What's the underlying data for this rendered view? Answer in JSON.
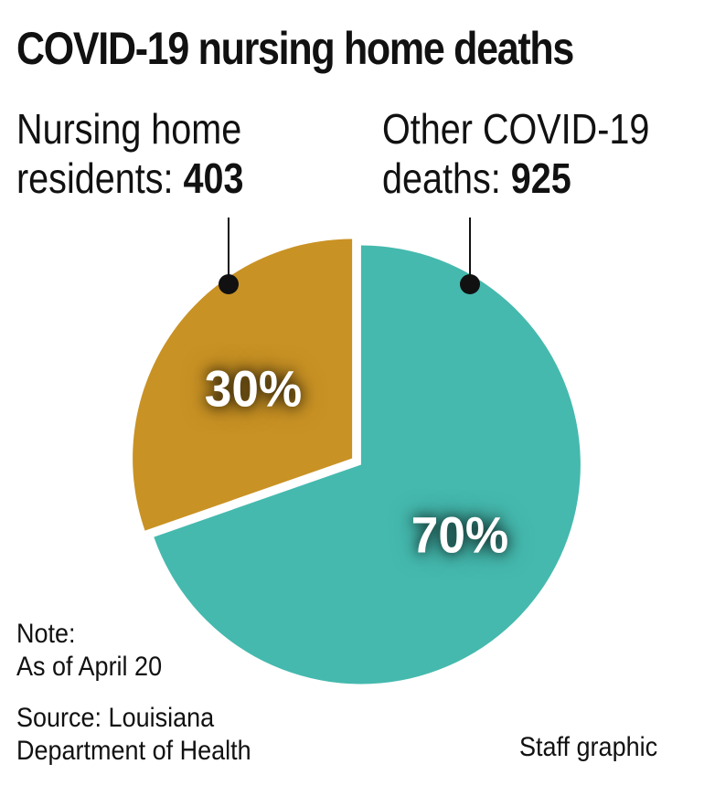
{
  "title": "COVID-19 nursing home deaths",
  "labels": {
    "left_line1": "Nursing home",
    "left_line2": "residents: ",
    "left_value": "403",
    "right_line1": "Other COVID-19",
    "right_line2": "deaths: ",
    "right_value": "925"
  },
  "chart_data": {
    "type": "pie",
    "title": "COVID-19 nursing home deaths",
    "slices": [
      {
        "name": "Nursing home residents",
        "value": 403,
        "percent": 30,
        "percent_label": "30%",
        "color": "#c99224"
      },
      {
        "name": "Other COVID-19 deaths",
        "value": 925,
        "percent": 70,
        "percent_label": "70%",
        "color": "#45b9ae"
      }
    ]
  },
  "note": {
    "line1": "Note:",
    "line2": "As of April 20"
  },
  "source": {
    "line1": "Source: Louisiana",
    "line2": "Department of Health"
  },
  "credit": "Staff graphic"
}
